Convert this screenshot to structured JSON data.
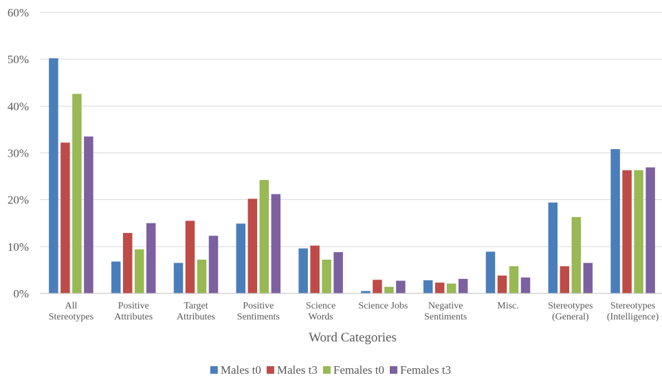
{
  "chart_data": {
    "type": "bar",
    "xlabel": "Word Categories",
    "ylabel": "",
    "ylim": [
      0,
      60
    ],
    "ytick_format": "percent",
    "yticks": [
      0,
      10,
      20,
      30,
      40,
      50,
      60
    ],
    "yticks_labels": [
      "0%",
      "10%",
      "20%",
      "30%",
      "40%",
      "50%",
      "60%"
    ],
    "grid": true,
    "legend_position": "bottom",
    "categories": [
      [
        "All",
        "Stereotypes"
      ],
      [
        "Positive",
        "Attributes"
      ],
      [
        "Target",
        "Attributes"
      ],
      [
        "Positive",
        "Sentiments"
      ],
      [
        "Science",
        "Words"
      ],
      [
        "Science Jobs"
      ],
      [
        "Negative",
        "Sentiments"
      ],
      [
        "Misc."
      ],
      [
        "Stereotypes",
        "(General)"
      ],
      [
        "Stereotypes",
        "(Intelligence)"
      ]
    ],
    "series": [
      {
        "name": "Males t0",
        "color": "#4a7ebb",
        "values": [
          50.2,
          6.8,
          6.5,
          14.9,
          9.6,
          0.5,
          2.8,
          8.9,
          19.4,
          30.8
        ]
      },
      {
        "name": "Males t3",
        "color": "#be4b48",
        "values": [
          32.2,
          12.9,
          15.5,
          20.2,
          10.2,
          2.9,
          2.3,
          3.8,
          5.8,
          26.3
        ]
      },
      {
        "name": "Females t0",
        "color": "#98b954",
        "values": [
          42.6,
          9.4,
          7.2,
          24.2,
          7.2,
          1.4,
          2.1,
          5.8,
          16.3,
          26.3
        ]
      },
      {
        "name": "Females t3",
        "color": "#7d60a0",
        "values": [
          33.5,
          15.0,
          12.3,
          21.2,
          8.8,
          2.7,
          3.1,
          3.4,
          6.5,
          26.9
        ]
      }
    ]
  }
}
